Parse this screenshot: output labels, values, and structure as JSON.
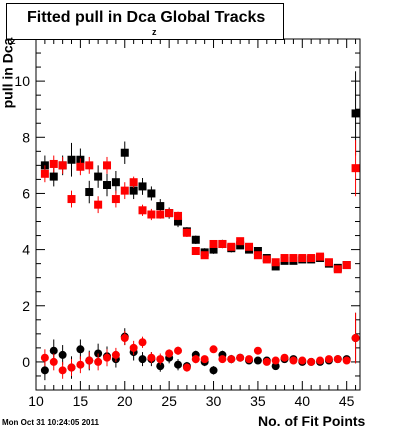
{
  "title": "Fitted pull in Dca",
  "title_subscript": "z",
  "title_suffix": "Global Tracks",
  "ylabel": "pull in Dca",
  "ylabel_subscript": "z",
  "xlabel": "No. of Fit Points",
  "timestamp": "Mon Oct 31 10:24:05 2011",
  "colors": {
    "series_black": "#000000",
    "series_red": "#ff0000",
    "axis": "#000000",
    "background": "#ffffff"
  },
  "chart_data": {
    "type": "scatter",
    "xlim": [
      10,
      46.5
    ],
    "ylim": [
      -1.0,
      11.5
    ],
    "x_ticks": [
      10,
      15,
      20,
      25,
      30,
      35,
      40,
      45
    ],
    "y_ticks": [
      0,
      2,
      4,
      6,
      8,
      10
    ],
    "grid": false,
    "legend": "none",
    "series": [
      {
        "color": "#000000",
        "marker": "square",
        "x": [
          11,
          12,
          13,
          14,
          15,
          16,
          17,
          18,
          19,
          20,
          21,
          22,
          23,
          24,
          25,
          26,
          27,
          28,
          29,
          30,
          31,
          32,
          33,
          34,
          35,
          36,
          37,
          38,
          39,
          40,
          41,
          42,
          43,
          44,
          45,
          46
        ],
        "y": [
          7.0,
          6.6,
          7.0,
          7.2,
          7.2,
          6.05,
          6.6,
          6.3,
          6.4,
          7.45,
          6.1,
          6.25,
          6.0,
          5.55,
          5.3,
          5.0,
          4.65,
          4.35,
          3.9,
          4.0,
          4.2,
          4.05,
          4.15,
          4.0,
          3.95,
          3.7,
          3.4,
          3.6,
          3.6,
          3.65,
          3.65,
          3.7,
          3.5,
          3.35,
          3.45,
          8.85
        ],
        "yerr": [
          0.35,
          0.35,
          0.35,
          0.6,
          0.4,
          0.4,
          0.4,
          0.4,
          0.4,
          0.4,
          0.3,
          0.3,
          0.25,
          0.25,
          0.2,
          0.2,
          0.15,
          0.15,
          0.15,
          0.15,
          0.15,
          0.15,
          0.1,
          0.1,
          0.1,
          0.1,
          0.1,
          0.1,
          0.1,
          0.1,
          0.1,
          0.1,
          0.1,
          0.1,
          0.1,
          1.5
        ]
      },
      {
        "color": "#ff0000",
        "marker": "square",
        "x": [
          11,
          12,
          13,
          14,
          15,
          16,
          17,
          18,
          19,
          20,
          21,
          22,
          23,
          24,
          25,
          26,
          27,
          28,
          29,
          30,
          31,
          32,
          33,
          34,
          35,
          36,
          37,
          38,
          39,
          40,
          41,
          42,
          43,
          44,
          45,
          46
        ],
        "y": [
          6.7,
          7.05,
          7.0,
          5.8,
          6.95,
          7.0,
          5.6,
          7.0,
          5.8,
          6.1,
          6.4,
          5.4,
          5.25,
          5.25,
          5.3,
          5.2,
          4.6,
          3.95,
          3.8,
          4.2,
          4.2,
          4.1,
          4.3,
          4.1,
          3.8,
          3.65,
          3.55,
          3.7,
          3.7,
          3.7,
          3.7,
          3.75,
          3.55,
          3.3,
          3.45,
          6.9
        ],
        "yerr": [
          0.3,
          0.3,
          0.3,
          0.3,
          0.3,
          0.3,
          0.3,
          0.3,
          0.3,
          0.3,
          0.2,
          0.2,
          0.2,
          0.15,
          0.15,
          0.15,
          0.15,
          0.1,
          0.1,
          0.1,
          0.1,
          0.1,
          0.1,
          0.1,
          0.1,
          0.1,
          0.1,
          0.1,
          0.1,
          0.1,
          0.1,
          0.1,
          0.1,
          0.1,
          0.1,
          1.0
        ]
      },
      {
        "color": "#000000",
        "marker": "circle",
        "x": [
          11,
          12,
          13,
          14,
          15,
          16,
          17,
          18,
          19,
          20,
          21,
          22,
          23,
          24,
          25,
          26,
          27,
          28,
          29,
          30,
          31,
          32,
          33,
          34,
          35,
          36,
          37,
          38,
          39,
          40,
          41,
          42,
          43,
          44,
          45,
          46
        ],
        "y": [
          -0.3,
          0.4,
          0.25,
          -0.2,
          0.45,
          0.05,
          0.3,
          0.2,
          0.1,
          0.9,
          0.35,
          0.1,
          0.1,
          -0.15,
          0.15,
          -0.1,
          -0.15,
          0.25,
          0.0,
          -0.3,
          0.25,
          0.1,
          0.15,
          0.05,
          0.05,
          0.05,
          -0.15,
          0.1,
          0.1,
          0.0,
          0.0,
          0.0,
          0.05,
          0.1,
          0.1,
          0.85
        ],
        "yerr": [
          0.35,
          0.4,
          0.35,
          0.4,
          0.35,
          0.35,
          0.35,
          0.35,
          0.3,
          0.3,
          0.3,
          0.25,
          0.25,
          0.2,
          0.2,
          0.2,
          0.15,
          0.15,
          0.15,
          0.15,
          0.15,
          0.15,
          0.1,
          0.1,
          0.1,
          0.1,
          0.1,
          0.1,
          0.1,
          0.1,
          0.1,
          0.1,
          0.1,
          0.1,
          0.1,
          0.9
        ]
      },
      {
        "color": "#ff0000",
        "marker": "circle",
        "x": [
          11,
          12,
          13,
          14,
          15,
          16,
          17,
          18,
          19,
          20,
          21,
          22,
          23,
          24,
          25,
          26,
          27,
          28,
          29,
          30,
          31,
          32,
          33,
          34,
          35,
          36,
          37,
          38,
          39,
          40,
          41,
          42,
          43,
          44,
          45,
          46
        ],
        "y": [
          0.15,
          0.0,
          -0.3,
          -0.2,
          -0.1,
          0.05,
          0.0,
          0.15,
          0.25,
          0.85,
          0.5,
          0.7,
          0.15,
          0.1,
          0.3,
          0.4,
          -0.2,
          0.1,
          0.1,
          0.45,
          0.1,
          0.1,
          0.15,
          0.1,
          0.4,
          0.0,
          0.05,
          0.15,
          0.05,
          0.05,
          0.0,
          0.05,
          0.1,
          0.1,
          0.05,
          0.85
        ],
        "yerr": [
          0.3,
          0.3,
          0.3,
          0.3,
          0.3,
          0.3,
          0.3,
          0.3,
          0.25,
          0.25,
          0.25,
          0.2,
          0.2,
          0.2,
          0.15,
          0.15,
          0.15,
          0.15,
          0.1,
          0.1,
          0.1,
          0.1,
          0.1,
          0.1,
          0.1,
          0.1,
          0.1,
          0.1,
          0.1,
          0.1,
          0.1,
          0.1,
          0.1,
          0.1,
          0.1,
          0.9
        ]
      }
    ]
  }
}
